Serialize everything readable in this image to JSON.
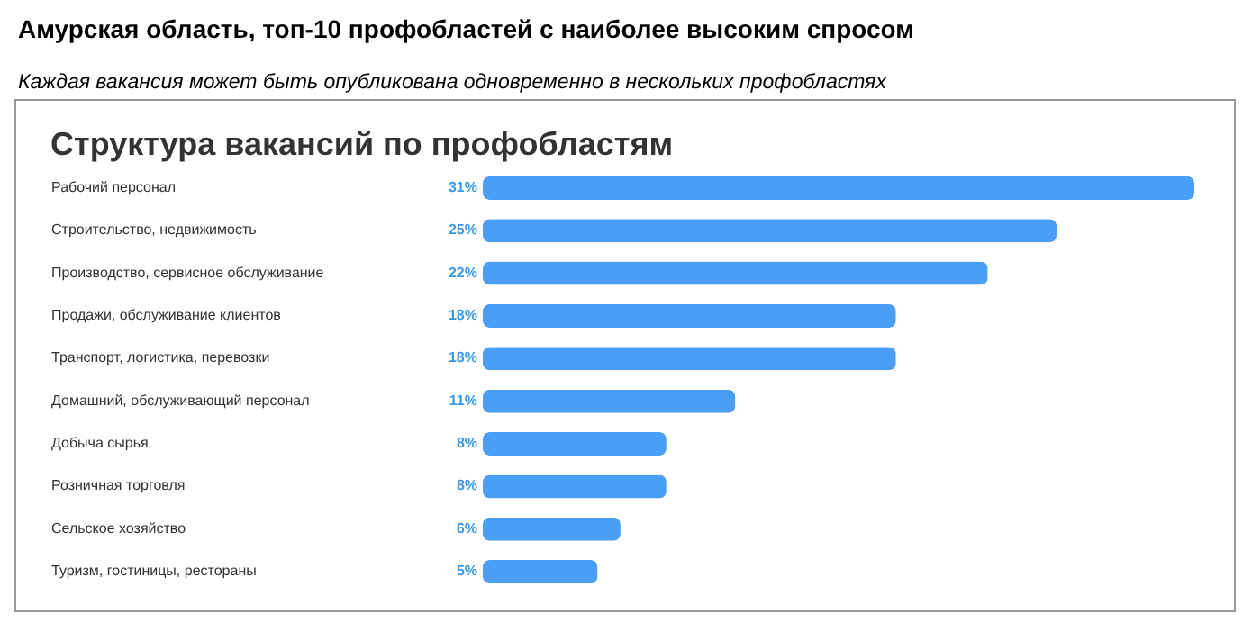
{
  "chart_data": {
    "type": "bar",
    "orientation": "horizontal",
    "title": "Амурская область, топ-10 профобластей с наиболее высоким спросом",
    "subtitle": "Каждая вакансия может быть опубликована одновременно в нескольких профобластях",
    "annotations": [
      "Структура вакансий по профобластям"
    ],
    "categories": [
      "Рабочий персонал",
      "Строительство, недвижимость",
      "Производство, сервисное обслуживание",
      "Продажи, обслуживание клиентов",
      "Транспорт, логистика, перевозки",
      "Домашний, обслуживающий персонал",
      "Добыча сырья",
      "Розничная торговля",
      "Сельское хозяйство",
      "Туризм, гостиницы, рестораны"
    ],
    "values": [
      31,
      25,
      22,
      18,
      18,
      11,
      8,
      8,
      6,
      5
    ],
    "value_labels": [
      "31%",
      "25%",
      "22%",
      "18%",
      "18%",
      "11%",
      "8%",
      "8%",
      "6%",
      "5%"
    ],
    "color": "#4a9ff5"
  }
}
